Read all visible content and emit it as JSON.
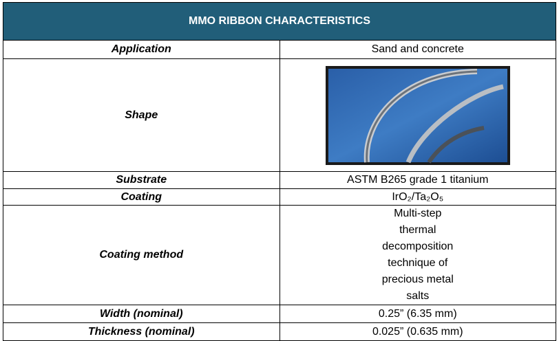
{
  "table": {
    "title": "MMO RIBBON CHARACTERISTICS",
    "rows": [
      [
        "Application",
        "Sand and concrete"
      ],
      [
        "Shape"
      ],
      [
        "Substrate",
        "ASTM B265 grade 1 titanium"
      ],
      [
        "Coating",
        "IrO₂/Ta₂O₅"
      ],
      [
        "Coating method",
        "Multi-step thermal decomposition technique of precious metal salts"
      ],
      [
        "Width (nominal)",
        "0.25” (6.35 mm)"
      ],
      [
        "Thickness (nominal)",
        "0.025” (0.635 mm)"
      ]
    ]
  }
}
